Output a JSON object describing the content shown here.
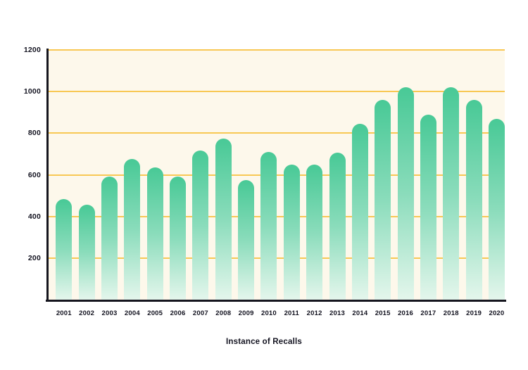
{
  "chart_data": {
    "type": "bar",
    "title": "",
    "xlabel": "Instance of Recalls",
    "ylabel": "",
    "categories": [
      "2001",
      "2002",
      "2003",
      "2004",
      "2005",
      "2006",
      "2007",
      "2008",
      "2009",
      "2010",
      "2011",
      "2012",
      "2013",
      "2014",
      "2015",
      "2016",
      "2017",
      "2018",
      "2019",
      "2020"
    ],
    "values": [
      485,
      455,
      590,
      675,
      635,
      590,
      715,
      775,
      575,
      710,
      650,
      650,
      705,
      845,
      960,
      1020,
      890,
      1020,
      960,
      870
    ],
    "ylim": [
      0,
      1200
    ],
    "yticks": [
      200,
      400,
      600,
      800,
      1000,
      1200
    ],
    "grid": true,
    "legend": "none",
    "colors": {
      "bar_gradient_top": "#48C996",
      "bar_gradient_mid": "#8ADCBB",
      "bar_gradient_bottom": "#E4F6EC",
      "gridline": "#F8C854",
      "plot_background": "#FDF8EB",
      "axis": "#15151E",
      "label_text": "#131320",
      "page_background": "#FFFFFF"
    }
  }
}
